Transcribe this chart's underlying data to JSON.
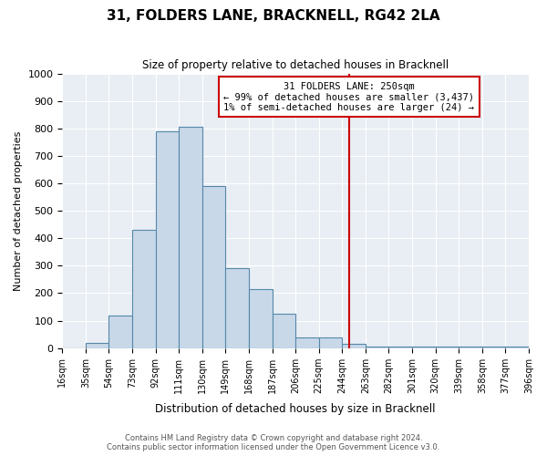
{
  "title": "31, FOLDERS LANE, BRACKNELL, RG42 2LA",
  "subtitle": "Size of property relative to detached houses in Bracknell",
  "xlabel": "Distribution of detached houses by size in Bracknell",
  "ylabel": "Number of detached properties",
  "bin_edges": [
    16,
    35,
    54,
    73,
    92,
    111,
    130,
    149,
    168,
    187,
    206,
    225,
    244,
    263,
    282,
    301,
    320,
    339,
    358,
    377,
    396
  ],
  "counts": [
    0,
    20,
    120,
    430,
    790,
    805,
    590,
    290,
    215,
    125,
    40,
    40,
    15,
    7,
    5,
    4,
    4,
    4,
    4,
    5
  ],
  "bar_facecolor": "#c8d8e8",
  "bar_edgecolor": "#5588aa",
  "vline_x": 250,
  "vline_color": "#cc0000",
  "annotation_title": "31 FOLDERS LANE: 250sqm",
  "annotation_line1": "← 99% of detached houses are smaller (3,437)",
  "annotation_line2": "1% of semi-detached houses are larger (24) →",
  "annotation_box_edgecolor": "#cc0000",
  "ylim": [
    0,
    1000
  ],
  "yticks": [
    0,
    100,
    200,
    300,
    400,
    500,
    600,
    700,
    800,
    900,
    1000
  ],
  "tick_labels": [
    "16sqm",
    "35sqm",
    "54sqm",
    "73sqm",
    "92sqm",
    "111sqm",
    "130sqm",
    "149sqm",
    "168sqm",
    "187sqm",
    "206sqm",
    "225sqm",
    "244sqm",
    "263sqm",
    "282sqm",
    "301sqm",
    "320sqm",
    "339sqm",
    "358sqm",
    "377sqm",
    "396sqm"
  ],
  "background_color": "#e8eef4",
  "footer_line1": "Contains HM Land Registry data © Crown copyright and database right 2024.",
  "footer_line2": "Contains public sector information licensed under the Open Government Licence v3.0."
}
